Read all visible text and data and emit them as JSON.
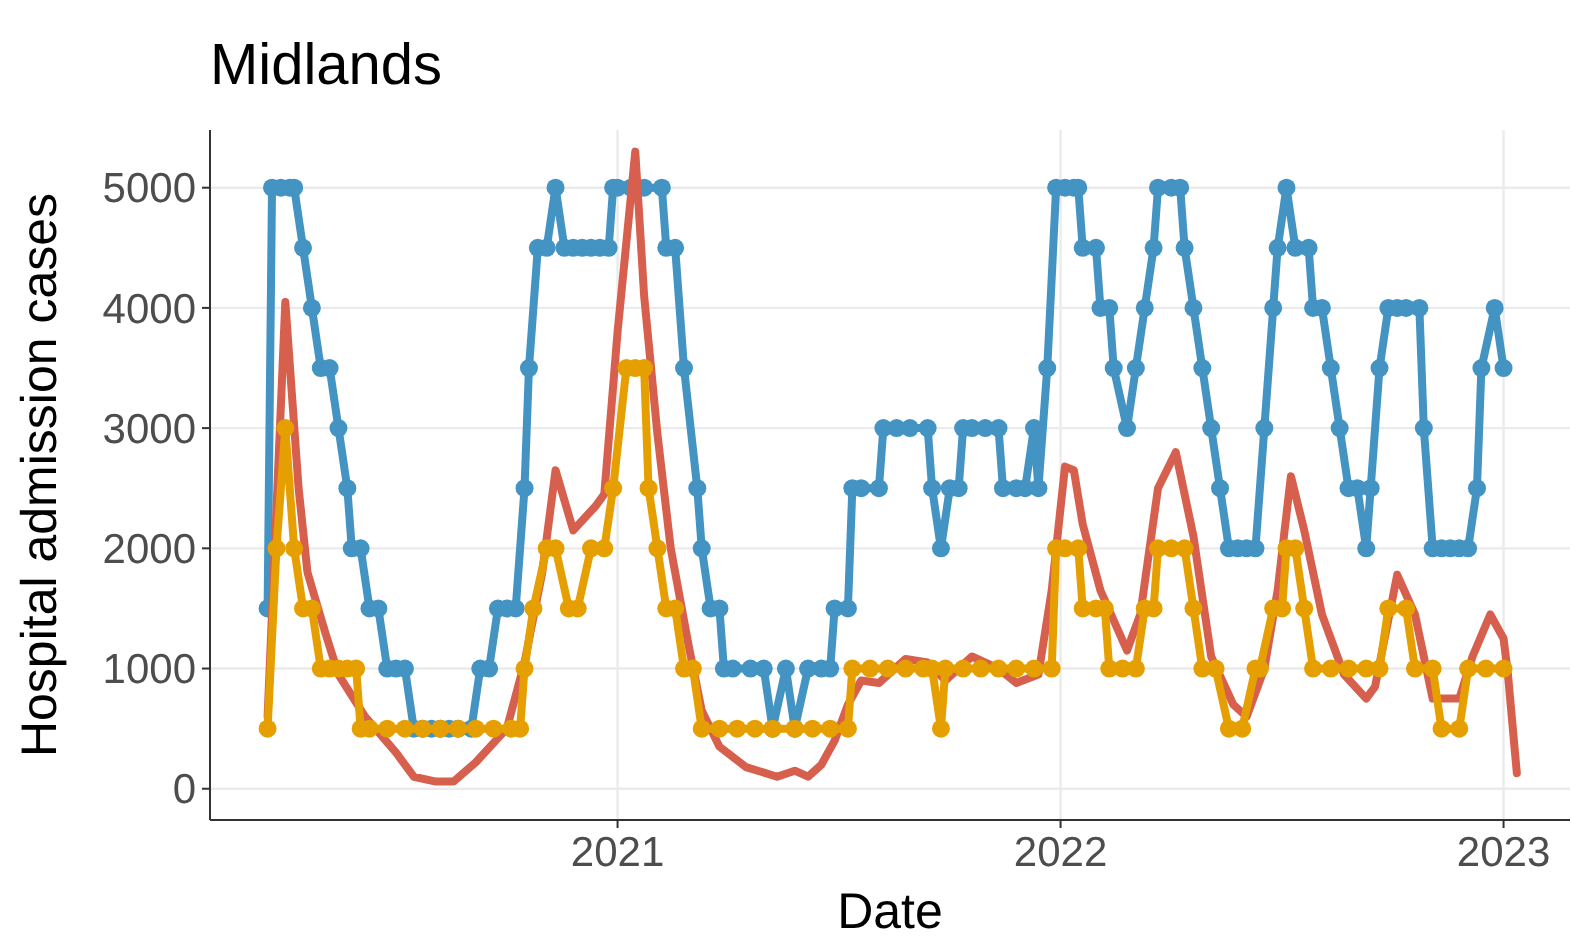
{
  "chart_data": {
    "type": "line",
    "title": "Midlands",
    "xlabel": "Date",
    "ylabel": "Hospital admission cases",
    "xlim": [
      2020.08,
      2023.15
    ],
    "xticks": [
      2021,
      2022,
      2023
    ],
    "ylim": [
      -260,
      5480
    ],
    "yticks": [
      0,
      1000,
      2000,
      3000,
      4000,
      5000
    ],
    "grid": true,
    "series": [
      {
        "color": "#4393c3",
        "marker": "circle",
        "x": [
          2020.21,
          2020.22,
          2020.24,
          2020.26,
          2020.27,
          2020.29,
          2020.31,
          2020.33,
          2020.35,
          2020.37,
          2020.39,
          2020.4,
          2020.42,
          2020.44,
          2020.46,
          2020.48,
          2020.5,
          2020.52,
          2020.54,
          2020.56,
          2020.58,
          2020.6,
          2020.62,
          2020.64,
          2020.67,
          2020.69,
          2020.71,
          2020.73,
          2020.75,
          2020.77,
          2020.79,
          2020.8,
          2020.82,
          2020.84,
          2020.86,
          2020.88,
          2020.9,
          2020.92,
          2020.94,
          2020.96,
          2020.98,
          2020.99,
          2021.0,
          2021.03,
          2021.06,
          2021.1,
          2021.11,
          2021.13,
          2021.15,
          2021.18,
          2021.19,
          2021.21,
          2021.23,
          2021.24,
          2021.26,
          2021.3,
          2021.33,
          2021.35,
          2021.38,
          2021.4,
          2021.43,
          2021.46,
          2021.48,
          2021.49,
          2021.52,
          2021.53,
          2021.55,
          2021.59,
          2021.6,
          2021.63,
          2021.66,
          2021.7,
          2021.71,
          2021.73,
          2021.75,
          2021.77,
          2021.78,
          2021.8,
          2021.83,
          2021.86,
          2021.87,
          2021.9,
          2021.92,
          2021.94,
          2021.95,
          2021.97,
          2021.99,
          2022.01,
          2022.03,
          2022.04,
          2022.05,
          2022.08,
          2022.09,
          2022.11,
          2022.12,
          2022.15,
          2022.17,
          2022.19,
          2022.21,
          2022.22,
          2022.25,
          2022.27,
          2022.28,
          2022.3,
          2022.32,
          2022.34,
          2022.36,
          2022.38,
          2022.4,
          2022.42,
          2022.44,
          2022.46,
          2022.48,
          2022.49,
          2022.51,
          2022.53,
          2022.56,
          2022.57,
          2022.59,
          2022.61,
          2022.63,
          2022.65,
          2022.67,
          2022.69,
          2022.7,
          2022.72,
          2022.74,
          2022.76,
          2022.78,
          2022.81,
          2022.82,
          2022.84,
          2022.86,
          2022.88,
          2022.9,
          2022.92,
          2022.94,
          2022.95,
          2022.98,
          2023.0
        ],
        "values": [
          1500,
          5000,
          5000,
          5000,
          5000,
          4500,
          4000,
          3500,
          3500,
          3000,
          2500,
          2000,
          2000,
          1500,
          1500,
          1000,
          1000,
          1000,
          500,
          500,
          500,
          500,
          500,
          500,
          500,
          1000,
          1000,
          1500,
          1500,
          1500,
          2500,
          3500,
          4500,
          4500,
          5000,
          4500,
          4500,
          4500,
          4500,
          4500,
          4500,
          5000,
          5000,
          5000,
          5000,
          5000,
          4500,
          4500,
          3500,
          2500,
          2000,
          1500,
          1500,
          1000,
          1000,
          1000,
          1000,
          500,
          1000,
          500,
          1000,
          1000,
          1000,
          1500,
          1500,
          2500,
          2500,
          2500,
          3000,
          3000,
          3000,
          3000,
          2500,
          2000,
          2500,
          2500,
          3000,
          3000,
          3000,
          3000,
          2500,
          2500,
          2500,
          3000,
          2500,
          3500,
          5000,
          5000,
          5000,
          5000,
          4500,
          4500,
          4000,
          4000,
          3500,
          3000,
          3500,
          4000,
          4500,
          5000,
          5000,
          5000,
          4500,
          4000,
          3500,
          3000,
          2500,
          2000,
          2000,
          2000,
          2000,
          3000,
          4000,
          4500,
          5000,
          4500,
          4500,
          4000,
          4000,
          3500,
          3000,
          2500,
          2500,
          2000,
          2500,
          3500,
          4000,
          4000,
          4000,
          4000,
          3000,
          2000,
          2000,
          2000,
          2000,
          2000,
          2500,
          3500,
          4000,
          3500
        ]
      },
      {
        "color": "#d6604d",
        "marker": "none",
        "x": [
          2020.21,
          2020.25,
          2020.28,
          2020.3,
          2020.34,
          2020.37,
          2020.43,
          2020.5,
          2020.54,
          2020.59,
          2020.63,
          2020.68,
          2020.75,
          2020.79,
          2020.83,
          2020.86,
          2020.9,
          2020.95,
          2020.97,
          2021.0,
          2021.04,
          2021.06,
          2021.09,
          2021.12,
          2021.16,
          2021.19,
          2021.23,
          2021.29,
          2021.36,
          2021.4,
          2021.43,
          2021.46,
          2021.49,
          2021.52,
          2021.55,
          2021.59,
          2021.65,
          2021.7,
          2021.74,
          2021.8,
          2021.86,
          2021.9,
          2021.95,
          2021.98,
          2022.01,
          2022.03,
          2022.05,
          2022.09,
          2022.15,
          2022.18,
          2022.22,
          2022.26,
          2022.3,
          2022.34,
          2022.39,
          2022.42,
          2022.46,
          2022.49,
          2022.52,
          2022.55,
          2022.59,
          2022.64,
          2022.69,
          2022.71,
          2022.76,
          2022.8,
          2022.84,
          2022.9,
          2022.93,
          2022.97,
          2023.0,
          2023.01,
          2023.03
        ],
        "values": [
          600,
          4050,
          2500,
          1800,
          1300,
          950,
          600,
          300,
          100,
          60,
          60,
          220,
          500,
          1050,
          1800,
          2650,
          2150,
          2350,
          2450,
          3800,
          5300,
          4100,
          2950,
          2000,
          1200,
          650,
          350,
          180,
          100,
          150,
          100,
          200,
          400,
          700,
          900,
          880,
          1080,
          1050,
          900,
          1100,
          1000,
          880,
          950,
          1650,
          2680,
          2650,
          2200,
          1650,
          1150,
          1450,
          2500,
          2800,
          2100,
          1100,
          700,
          600,
          1000,
          1650,
          2600,
          2150,
          1450,
          950,
          750,
          850,
          1780,
          1450,
          750,
          750,
          1100,
          1450,
          1250,
          950,
          130
        ]
      },
      {
        "color": "#e69f00",
        "marker": "circle",
        "x": [
          2020.21,
          2020.23,
          2020.25,
          2020.27,
          2020.29,
          2020.31,
          2020.33,
          2020.35,
          2020.37,
          2020.39,
          2020.41,
          2020.42,
          2020.44,
          2020.48,
          2020.52,
          2020.56,
          2020.6,
          2020.64,
          2020.68,
          2020.72,
          2020.76,
          2020.78,
          2020.79,
          2020.81,
          2020.84,
          2020.86,
          2020.89,
          2020.91,
          2020.94,
          2020.97,
          2020.99,
          2021.02,
          2021.04,
          2021.06,
          2021.07,
          2021.09,
          2021.11,
          2021.13,
          2021.15,
          2021.17,
          2021.19,
          2021.23,
          2021.27,
          2021.31,
          2021.35,
          2021.4,
          2021.44,
          2021.48,
          2021.52,
          2021.53,
          2021.57,
          2021.61,
          2021.65,
          2021.69,
          2021.71,
          2021.73,
          2021.74,
          2021.78,
          2021.82,
          2021.86,
          2021.9,
          2021.94,
          2021.98,
          2021.99,
          2022.01,
          2022.04,
          2022.05,
          2022.08,
          2022.1,
          2022.11,
          2022.14,
          2022.17,
          2022.19,
          2022.21,
          2022.22,
          2022.25,
          2022.28,
          2022.3,
          2022.32,
          2022.35,
          2022.38,
          2022.41,
          2022.44,
          2022.45,
          2022.48,
          2022.5,
          2022.51,
          2022.53,
          2022.55,
          2022.57,
          2022.61,
          2022.65,
          2022.69,
          2022.72,
          2022.74,
          2022.78,
          2022.8,
          2022.84,
          2022.86,
          2022.9,
          2022.92,
          2022.96,
          2023.0
        ],
        "values": [
          500,
          2000,
          3000,
          2000,
          1500,
          1500,
          1000,
          1000,
          1000,
          1000,
          1000,
          500,
          500,
          500,
          500,
          500,
          500,
          500,
          500,
          500,
          500,
          500,
          1000,
          1500,
          2000,
          2000,
          1500,
          1500,
          2000,
          2000,
          2500,
          3500,
          3500,
          3500,
          2500,
          2000,
          1500,
          1500,
          1000,
          1000,
          500,
          500,
          500,
          500,
          500,
          500,
          500,
          500,
          500,
          1000,
          1000,
          1000,
          1000,
          1000,
          1000,
          500,
          1000,
          1000,
          1000,
          1000,
          1000,
          1000,
          1000,
          2000,
          2000,
          2000,
          1500,
          1500,
          1500,
          1000,
          1000,
          1000,
          1500,
          1500,
          2000,
          2000,
          2000,
          1500,
          1000,
          1000,
          500,
          500,
          1000,
          1000,
          1500,
          1500,
          2000,
          2000,
          1500,
          1000,
          1000,
          1000,
          1000,
          1000,
          1500,
          1500,
          1000,
          1000,
          500,
          500,
          1000,
          1000,
          1000
        ]
      }
    ]
  }
}
